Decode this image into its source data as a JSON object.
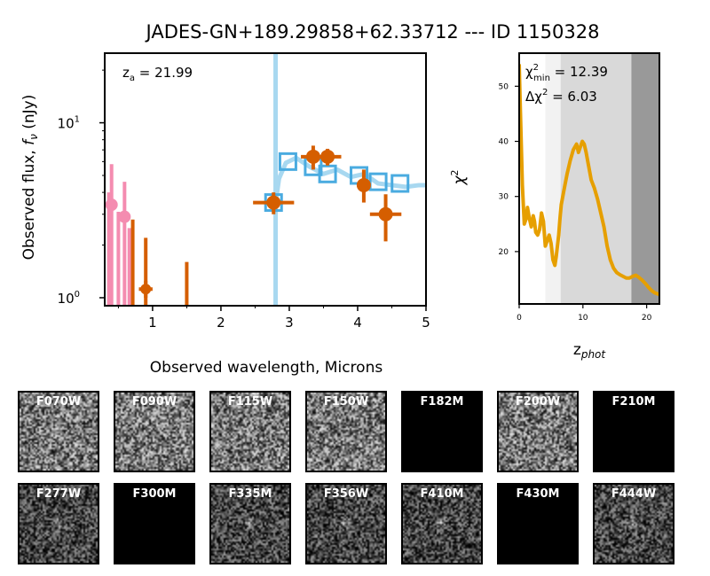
{
  "figure_title": "JADES-GN+189.29858+62.33712 --- ID 1150328",
  "colors": {
    "template_line": "#a8d8f0",
    "model_squares": "#4aabe0",
    "detections": "#d55e00",
    "upper_limits": "#f48cb0",
    "chi2_curve": "#e69f00",
    "shade_light": "#f2f2f2",
    "shade_mid": "#d9d9d9",
    "shade_dark": "#999999"
  },
  "chart_data": [
    {
      "type": "scatter",
      "name": "sed",
      "xlabel": "Observed wavelength, Microns",
      "ylabel_parts": [
        "Observed flux, ",
        "f",
        "ν",
        " (nJy)"
      ],
      "xlim": [
        0.3,
        5.0
      ],
      "ylim": [
        0.9,
        25
      ],
      "yscale": "log",
      "x_ticks": [
        1,
        2,
        3,
        4,
        5
      ],
      "y_ticks": [
        {
          "value": 1,
          "base": "10",
          "exp": "0"
        },
        {
          "value": 10,
          "base": "10",
          "exp": "1"
        }
      ],
      "annotation": {
        "prefix": "z",
        "sub": "a",
        "text": " = 21.99"
      },
      "lyman_break_micron": 2.8,
      "template": {
        "x": [
          2.8,
          2.85,
          2.95,
          3.1,
          3.3,
          3.5,
          3.7,
          3.9,
          4.1,
          4.3,
          4.5,
          4.7,
          4.9,
          5.0
        ],
        "y": [
          3.5,
          4.8,
          5.9,
          6.3,
          5.6,
          5.1,
          5.4,
          4.9,
          5.1,
          4.5,
          4.4,
          4.3,
          4.4,
          4.4
        ]
      },
      "model_photometry": [
        {
          "x": 2.77,
          "y": 3.5
        },
        {
          "x": 2.98,
          "y": 6.0
        },
        {
          "x": 3.35,
          "y": 5.6
        },
        {
          "x": 3.56,
          "y": 5.1
        },
        {
          "x": 4.02,
          "y": 5.0
        },
        {
          "x": 4.3,
          "y": 4.6
        },
        {
          "x": 4.62,
          "y": 4.5
        }
      ],
      "detections": [
        {
          "x": 2.77,
          "y": 3.5,
          "xerr": 0.3,
          "ylo": 3.0,
          "yhi": 4.0
        },
        {
          "x": 3.35,
          "y": 6.4,
          "xerr": 0.18,
          "ylo": 5.4,
          "yhi": 7.4
        },
        {
          "x": 3.56,
          "y": 6.4,
          "xerr": 0.2,
          "ylo": 5.7,
          "yhi": 7.1
        },
        {
          "x": 4.09,
          "y": 4.4,
          "xerr": 0.1,
          "ylo": 3.5,
          "yhi": 5.4
        },
        {
          "x": 4.41,
          "y": 3.0,
          "xerr": 0.23,
          "ylo": 2.1,
          "yhi": 3.9
        }
      ],
      "detection_bars": [
        {
          "x": 0.71,
          "ylo": 0.9,
          "yhi": 2.8
        },
        {
          "x": 0.9,
          "ylo": 0.9,
          "yhi": 2.2
        },
        {
          "x": 1.5,
          "ylo": 0.9,
          "yhi": 1.6
        }
      ],
      "faint_points": [
        {
          "x": 0.9,
          "y": 1.12,
          "xerr": 0.1,
          "ylo": 1.0,
          "yhi": 1.25
        }
      ],
      "upper_limits": [
        {
          "x": 0.4,
          "y": 3.4,
          "xerr": 0.05,
          "yhi": 5.8
        },
        {
          "x": 0.59,
          "y": 2.9,
          "xerr": 0.06,
          "yhi": 4.6
        }
      ],
      "upper_bars": [
        {
          "x": 0.36,
          "yhi": 4.0
        },
        {
          "x": 0.5,
          "yhi": 3.1
        },
        {
          "x": 0.66,
          "yhi": 2.5
        }
      ]
    },
    {
      "type": "line",
      "name": "chi2",
      "xlabel_parts": [
        "z",
        "phot"
      ],
      "ylabel_parts": [
        "χ",
        "2"
      ],
      "xlim": [
        0,
        22
      ],
      "ylim": [
        10.5,
        56
      ],
      "x_ticks": [
        0,
        10,
        20
      ],
      "y_ticks": [
        20,
        30,
        40,
        50
      ],
      "legend_line1": {
        "prefix": "χ",
        "sup": "2",
        "sub": "min",
        "text": " = 12.39"
      },
      "legend_line2": {
        "prefix": "Δχ",
        "sup": "2",
        "text": " = 6.03"
      },
      "shaded_ranges": [
        {
          "from": 4.1,
          "to": 6.5,
          "level": "light"
        },
        {
          "from": 6.5,
          "to": 17.6,
          "level": "mid"
        },
        {
          "from": 17.6,
          "to": 22.0,
          "level": "dark"
        }
      ],
      "curve": {
        "x": [
          0.0,
          0.2,
          0.5,
          0.8,
          1.1,
          1.3,
          1.6,
          1.9,
          2.2,
          2.4,
          2.6,
          2.9,
          3.2,
          3.5,
          3.8,
          4.1,
          4.4,
          4.7,
          5.0,
          5.3,
          5.6,
          5.8,
          6.0,
          6.2,
          6.4,
          6.6,
          7.0,
          7.5,
          8.0,
          8.5,
          9.0,
          9.3,
          9.6,
          9.9,
          10.2,
          10.5,
          10.9,
          11.3,
          11.8,
          12.3,
          12.8,
          13.3,
          13.8,
          14.3,
          14.8,
          15.3,
          15.8,
          16.3,
          16.8,
          17.3,
          17.8,
          18.3,
          18.8,
          19.3,
          19.8,
          20.3,
          20.8,
          21.3,
          22.0
        ],
        "y": [
          54.0,
          45.0,
          32.0,
          25.0,
          26.0,
          28.0,
          26.0,
          24.5,
          26.5,
          25.5,
          23.5,
          23.0,
          24.0,
          27.0,
          25.5,
          21.0,
          22.0,
          23.0,
          21.5,
          18.5,
          17.5,
          19.0,
          21.0,
          23.0,
          26.0,
          28.5,
          31.0,
          34.0,
          36.5,
          38.5,
          39.5,
          38.0,
          39.0,
          40.0,
          39.5,
          38.0,
          35.5,
          33.0,
          31.5,
          29.5,
          27.0,
          24.5,
          21.0,
          18.5,
          17.0,
          16.2,
          15.8,
          15.5,
          15.2,
          15.2,
          15.5,
          15.7,
          15.3,
          14.8,
          14.2,
          13.5,
          12.9,
          12.5,
          12.2
        ]
      }
    }
  ],
  "stamps": [
    {
      "filter": "F070W",
      "blank": false
    },
    {
      "filter": "F090W",
      "blank": false
    },
    {
      "filter": "F115W",
      "blank": false
    },
    {
      "filter": "F150W",
      "blank": false
    },
    {
      "filter": "F182M",
      "blank": true
    },
    {
      "filter": "F200W",
      "blank": false
    },
    {
      "filter": "F210M",
      "blank": true
    },
    {
      "filter": "F277W",
      "blank": false
    },
    {
      "filter": "F300M",
      "blank": true
    },
    {
      "filter": "F335M",
      "blank": false
    },
    {
      "filter": "F356W",
      "blank": false
    },
    {
      "filter": "F410M",
      "blank": false
    },
    {
      "filter": "F430M",
      "blank": true
    },
    {
      "filter": "F444W",
      "blank": false
    }
  ]
}
